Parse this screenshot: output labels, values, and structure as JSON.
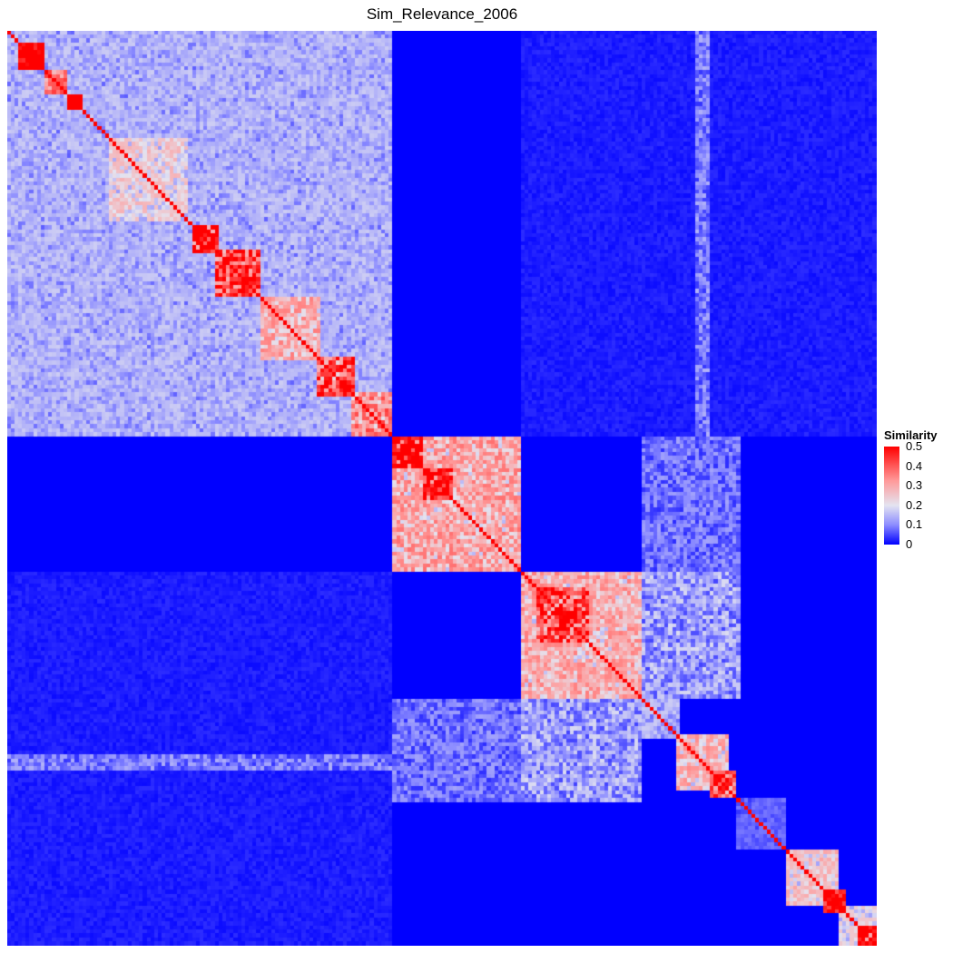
{
  "chart_data": {
    "type": "heatmap",
    "title": "Sim_Relevance_2006",
    "xlabel": "",
    "ylabel": "",
    "legend": {
      "title": "Similarity",
      "position": "right",
      "ticks": [
        {
          "value": 0,
          "label": "0"
        },
        {
          "value": 0.1,
          "label": "0.1"
        },
        {
          "value": 0.2,
          "label": "0.2"
        },
        {
          "value": 0.3,
          "label": "0.3"
        },
        {
          "value": 0.4,
          "label": "0.4"
        },
        {
          "value": 0.5,
          "label": "0.5"
        }
      ]
    },
    "color_scale": {
      "min": 0,
      "max": 0.5,
      "stops": [
        {
          "value": 0,
          "color": "#0000ff"
        },
        {
          "value": 0.1,
          "color": "#8c8cff"
        },
        {
          "value": 0.2,
          "color": "#e4e4f0"
        },
        {
          "value": 0.33,
          "color": "#ff9a9a"
        },
        {
          "value": 0.5,
          "color": "#ff0000"
        }
      ]
    },
    "grid": false,
    "matrix_order": 230,
    "symmetric": true,
    "diagonal_value": 0.5,
    "background_similarity": 0.0,
    "clusters": [
      {
        "start": 0,
        "end": 102,
        "within": 0.12,
        "group": "A"
      },
      {
        "start": 3,
        "end": 10,
        "within": 0.5
      },
      {
        "start": 10,
        "end": 16,
        "within": 0.3
      },
      {
        "start": 16,
        "end": 20,
        "within": 0.45
      },
      {
        "start": 27,
        "end": 48,
        "within": 0.2
      },
      {
        "start": 49,
        "end": 56,
        "within": 0.46
      },
      {
        "start": 55,
        "end": 67,
        "within": 0.38
      },
      {
        "start": 67,
        "end": 83,
        "within": 0.25
      },
      {
        "start": 82,
        "end": 92,
        "within": 0.36
      },
      {
        "start": 91,
        "end": 102,
        "within": 0.3
      },
      {
        "start": 102,
        "end": 136,
        "within": 0.26,
        "group": "B"
      },
      {
        "start": 102,
        "end": 110,
        "within": 0.45
      },
      {
        "start": 110,
        "end": 118,
        "within": 0.44
      },
      {
        "start": 136,
        "end": 168,
        "within": 0.25,
        "group": "C"
      },
      {
        "start": 140,
        "end": 154,
        "within": 0.38
      },
      {
        "start": 168,
        "end": 178,
        "within": 0.12
      },
      {
        "start": 177,
        "end": 191,
        "within": 0.24
      },
      {
        "start": 186,
        "end": 193,
        "within": 0.36
      },
      {
        "start": 193,
        "end": 206,
        "within": 0.06
      },
      {
        "start": 206,
        "end": 220,
        "within": 0.22
      },
      {
        "start": 216,
        "end": 222,
        "within": 0.4
      },
      {
        "start": 220,
        "end": 230,
        "within": 0.18
      },
      {
        "start": 225,
        "end": 230,
        "within": 0.4
      }
    ],
    "off_diagonal_blocks": [
      {
        "rows": [
          0,
          102
        ],
        "cols": [
          136,
          230
        ],
        "value": 0.02
      },
      {
        "rows": [
          102,
          136
        ],
        "cols": [
          136,
          168
        ],
        "value": 0.0
      },
      {
        "rows": [
          168,
          194
        ],
        "cols": [
          102,
          136
        ],
        "value": 0.08
      },
      {
        "rows": [
          168,
          194
        ],
        "cols": [
          136,
          168
        ],
        "value": 0.12
      },
      {
        "rows": [
          0,
          102
        ],
        "cols": [
          182,
          186
        ],
        "value": 0.09
      }
    ]
  }
}
